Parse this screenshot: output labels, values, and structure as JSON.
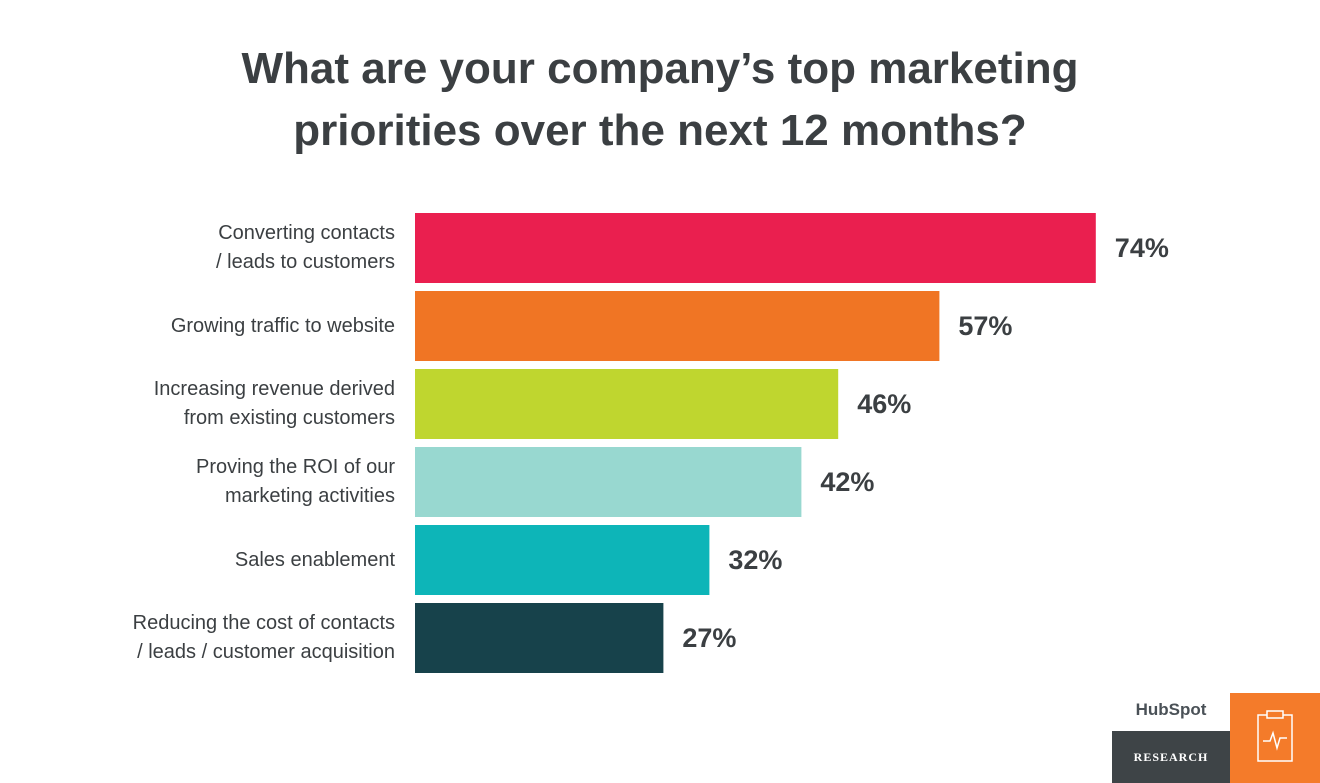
{
  "chart_data": {
    "type": "hbar",
    "title": "What are your company’s top marketing priorities over the next 12 months?",
    "categories": [
      "Converting contacts / leads to customers",
      "Growing traffic to website",
      "Increasing revenue derived from existing customers",
      "Proving the ROI of our marketing activities",
      "Sales enablement",
      "Reducing the cost of contacts / leads / customer acquisition"
    ],
    "values": [
      74,
      57,
      46,
      42,
      32,
      27
    ],
    "value_labels": [
      "74%",
      "57%",
      "46%",
      "42%",
      "32%",
      "27%"
    ],
    "colors": [
      "#ea1f4f",
      "#f07524",
      "#bfd62f",
      "#98d8d0",
      "#0db5b8",
      "#17424b"
    ]
  },
  "branding": {
    "logo": "HubSpot",
    "label": "RESEARCH"
  }
}
